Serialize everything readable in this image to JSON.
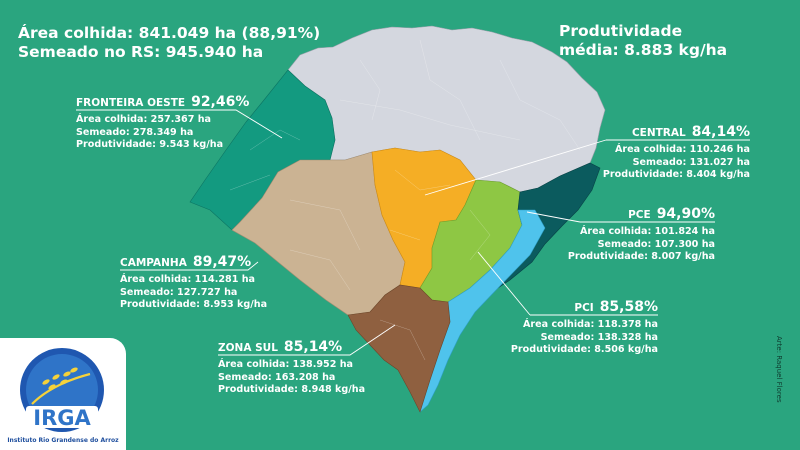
{
  "header": {
    "area_line": "Área colhida: 841.049 ha (88,91%)",
    "sown_line": "Semeado no RS: 945.940 ha",
    "productivity_line1": "Produtividade",
    "productivity_line2": "média: 8.883 kg/ha"
  },
  "regions": [
    {
      "key": "fronteira-oeste",
      "name": "FRONTEIRA OESTE",
      "pct": "92,46%",
      "area": "Área colhida: 257.367 ha",
      "sown": "Semeado: 278.349 ha",
      "prod": "Produtividade: 9.543 kg/ha",
      "color": "#139a80"
    },
    {
      "key": "central",
      "name": "CENTRAL",
      "pct": "84,14%",
      "area": "Área colhida: 110.246 ha",
      "sown": "Semeado: 131.027 ha",
      "prod": "Produtividade: 8.404 kg/ha",
      "color": "#f5ae25"
    },
    {
      "key": "pce",
      "name": "PCE",
      "pct": "94,90%",
      "area": "Área colhida: 101.824 ha",
      "sown": "Semeado: 107.300 ha",
      "prod": "Produtividade: 8.007 kg/ha",
      "color": "#8ec744"
    },
    {
      "key": "campanha",
      "name": "CAMPANHA",
      "pct": "89,47%",
      "area": "Área colhida: 114.281 ha",
      "sown": "Semeado: 127.727 ha",
      "prod": "Produtividade: 8.953 kg/ha",
      "color": "#cbb393"
    },
    {
      "key": "pci",
      "name": "PCI",
      "pct": "85,58%",
      "area": "Área colhida: 118.378 ha",
      "sown": "Semeado: 138.328 ha",
      "prod": "Produtividade: 8.506 kg/ha",
      "color": "#4fc3ec"
    },
    {
      "key": "zona-sul",
      "name": "ZONA SUL",
      "pct": "85,14%",
      "area": "Área colhida: 138.952 ha",
      "sown": "Semeado: 163.208 ha",
      "prod": "Produtividade: 8.948 kg/ha",
      "color": "#8f6040"
    }
  ],
  "colors": {
    "background": "#2aa57f",
    "north_region": "#d4d7df",
    "coastal_dark": "#0b5b5e",
    "text": "#ffffff"
  },
  "logo": {
    "name": "IRGA",
    "subtitle": "Instituto Rio Grandense do Arroz"
  },
  "credit": "Arte: Raquel Flores"
}
